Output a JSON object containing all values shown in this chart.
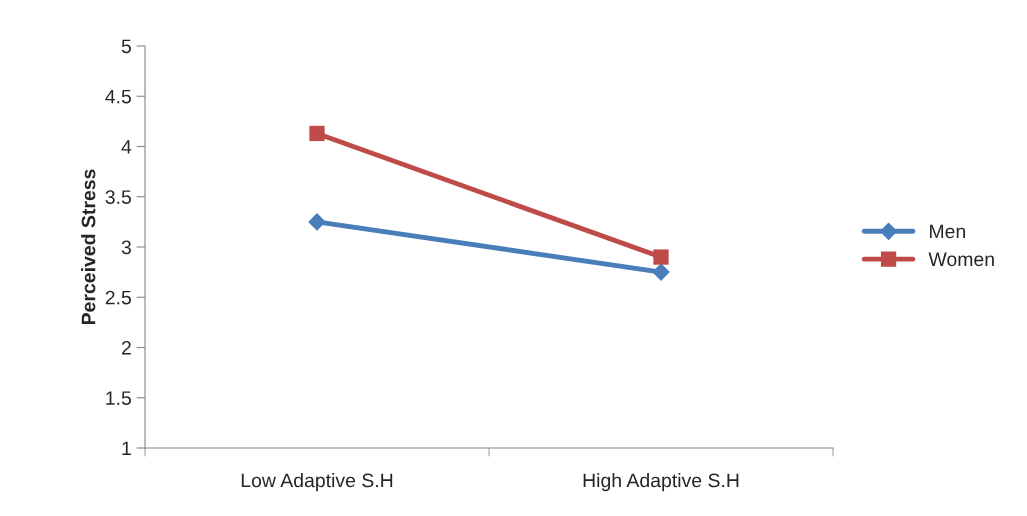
{
  "chart_data": {
    "type": "line",
    "ylabel": "Perceived Stress",
    "categories": [
      "Low Adaptive S.H",
      "High Adaptive S.H"
    ],
    "series": [
      {
        "name": "Men",
        "color": "#4a7ebb",
        "values": [
          3.25,
          2.75
        ],
        "marker": "diamond"
      },
      {
        "name": "Women",
        "color": "#be4b48",
        "values": [
          4.13,
          2.9
        ],
        "marker": "square"
      }
    ],
    "ylim": [
      1,
      5
    ],
    "yticks": [
      1,
      1.5,
      2,
      2.5,
      3,
      3.5,
      4,
      4.5,
      5
    ],
    "grid": false,
    "legend": "right"
  }
}
